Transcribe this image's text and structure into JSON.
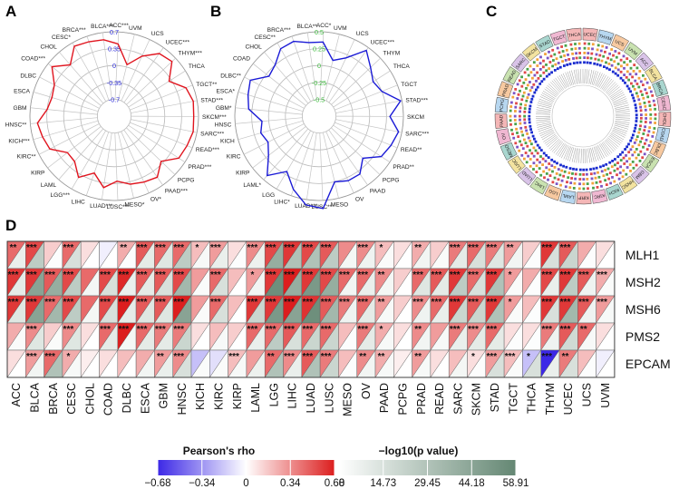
{
  "panels": {
    "a": "A",
    "b": "B",
    "c": "C",
    "d": "D"
  },
  "chart_data": [
    {
      "type": "radar",
      "panel": "A",
      "categories": [
        "ACC***",
        "UVM",
        "UCS",
        "UCEC***",
        "THYM***",
        "THCA",
        "TGCT**",
        "STAD***",
        "SKCM***",
        "SARC***",
        "READ***",
        "PRAD***",
        "PCPG",
        "PAAD***",
        "OV*",
        "MESO*",
        "LUSC***",
        "LUAD***",
        "LIHC",
        "LGG***",
        "LAML",
        "KIRP",
        "KIRC**",
        "KICH***",
        "HNSC**",
        "GBM",
        "ESCA",
        "DLBC",
        "COAD***",
        "CHOL",
        "CESC*",
        "BRCA***",
        "BLCA***"
      ],
      "values": [
        0.45,
        0.05,
        0.32,
        0.55,
        0.6,
        0.3,
        0.55,
        0.62,
        0.6,
        0.62,
        0.58,
        0.55,
        0.3,
        0.5,
        0.45,
        0.4,
        0.3,
        0.45,
        0.2,
        0.42,
        0.2,
        0.18,
        0.45,
        0.5,
        0.55,
        0.35,
        0.3,
        0.35,
        0.6,
        0.35,
        0.62,
        0.58,
        0.55
      ],
      "tick_labels": [
        "0.7",
        "0.35",
        "0",
        "-0.35",
        "-0.7"
      ],
      "ticks": [
        0.7,
        0.35,
        0,
        -0.35,
        -0.7
      ],
      "rlim": [
        -0.7,
        0.7
      ],
      "color": "#e0141e"
    },
    {
      "type": "radar",
      "panel": "B",
      "categories": [
        "ACC*",
        "UVM",
        "UCS",
        "UCEC***",
        "THYM",
        "THCA",
        "TGCT",
        "STAD***",
        "SKCM",
        "SARC***",
        "READ**",
        "PRAD**",
        "PCPG",
        "PAAD",
        "OV",
        "MESO",
        "LUSC***",
        "LUAD***",
        "LIHC*",
        "LGG",
        "LAML*",
        "KIRP",
        "KIRC",
        "KICH",
        "HNSC",
        "GBM*",
        "ESCA*",
        "DLBC**",
        "COAD",
        "CHOL",
        "CESC**",
        "BRCA***",
        "BLCA**"
      ],
      "values": [
        0.35,
        0.1,
        0.2,
        0.45,
        0.3,
        0.2,
        0.25,
        0.48,
        0.3,
        0.45,
        0.4,
        0.35,
        0.15,
        0.3,
        0.3,
        0.25,
        0.62,
        0.58,
        0.4,
        0.2,
        0.42,
        0.2,
        0.1,
        0.15,
        0.1,
        0.3,
        0.35,
        0.4,
        0.2,
        0.25,
        0.4,
        0.42,
        0.35
      ],
      "tick_labels": [
        "0.5",
        "0.25",
        "0",
        "-0.25",
        "-0.5"
      ],
      "ticks": [
        0.5,
        0.25,
        0,
        -0.25,
        -0.5
      ],
      "rlim": [
        -0.5,
        0.5
      ],
      "color": "#1a1ad6"
    },
    {
      "type": "circos",
      "panel": "C",
      "sectors": [
        "UCEC",
        "THYM",
        "UCS",
        "UVM",
        "ACC",
        "BLCA",
        "BRCA",
        "CESC",
        "CHOL",
        "COAD",
        "DLBC",
        "ESCA",
        "GBM",
        "HNSC",
        "KICH",
        "KIRC",
        "KIRP",
        "LAML",
        "LGG",
        "LIHC",
        "LUAD",
        "LUSC",
        "MESO",
        "OV",
        "PAAD",
        "PCPG",
        "PRAD",
        "READ",
        "SARC",
        "SKCM",
        "STAD",
        "TGCT",
        "THCA"
      ]
    },
    {
      "type": "heatmap",
      "panel": "D",
      "categories": [
        "ACC",
        "BLCA",
        "BRCA",
        "CESC",
        "CHOL",
        "COAD",
        "DLBC",
        "ESCA",
        "GBM",
        "HNSC",
        "KICH",
        "KIRC",
        "KIRP",
        "LAML",
        "LGG",
        "LIHC",
        "LUAD",
        "LUSC",
        "MESO",
        "OV",
        "PAAD",
        "PCPG",
        "PRAD",
        "READ",
        "SARC",
        "SKCM",
        "STAD",
        "TGCT",
        "THCA",
        "THYM",
        "UCEC",
        "UCS",
        "UVM"
      ],
      "genes": [
        "MLH1",
        "MSH2",
        "MSH6",
        "PMS2",
        "EPCAM"
      ],
      "rho": [
        [
          0.45,
          0.55,
          0.15,
          0.45,
          0.1,
          -0.05,
          0.25,
          0.5,
          0.45,
          0.45,
          0.2,
          0.3,
          0.1,
          0.35,
          0.55,
          0.6,
          0.55,
          0.5,
          0.35,
          0.35,
          0.2,
          0.1,
          0.25,
          0.15,
          0.4,
          0.45,
          0.4,
          0.3,
          0.15,
          0.6,
          0.5,
          0.25,
          0.1
        ],
        [
          0.6,
          0.6,
          0.5,
          0.55,
          0.45,
          0.55,
          0.65,
          0.5,
          0.5,
          0.55,
          0.3,
          0.45,
          0.2,
          0.3,
          0.6,
          0.68,
          0.6,
          0.55,
          0.45,
          0.45,
          0.35,
          0.15,
          0.45,
          0.5,
          0.6,
          0.45,
          0.6,
          0.3,
          0.25,
          0.55,
          0.6,
          0.5,
          0.25
        ],
        [
          0.6,
          0.6,
          0.45,
          0.55,
          0.45,
          0.55,
          0.68,
          0.5,
          0.5,
          0.68,
          0.3,
          0.45,
          0.2,
          0.6,
          0.6,
          0.68,
          0.62,
          0.5,
          0.4,
          0.45,
          0.3,
          0.15,
          0.35,
          0.45,
          0.6,
          0.5,
          0.6,
          0.3,
          0.2,
          0.6,
          0.6,
          0.5,
          0.3
        ],
        [
          0.25,
          0.35,
          0.15,
          0.35,
          0.1,
          0.45,
          0.68,
          0.45,
          0.4,
          0.4,
          0.1,
          0.2,
          0.15,
          0.45,
          0.45,
          0.5,
          0.45,
          0.45,
          0.2,
          0.4,
          0.25,
          0.1,
          0.35,
          0.3,
          0.4,
          0.35,
          0.45,
          0.1,
          0.1,
          0.4,
          0.5,
          0.45,
          0.1
        ],
        [
          0.1,
          0.3,
          0.45,
          0.25,
          0.05,
          0.1,
          0.2,
          0.25,
          0.3,
          0.35,
          -0.2,
          -0.1,
          0.2,
          0.3,
          0.45,
          0.35,
          0.5,
          0.4,
          0.2,
          0.35,
          0.25,
          0.05,
          0.3,
          0.1,
          0.2,
          0.1,
          0.3,
          0.2,
          -0.2,
          -0.68,
          0.4,
          0.2,
          -0.05
        ]
      ],
      "neglog10p": [
        [
          8,
          25,
          1,
          15,
          0,
          0,
          1,
          10,
          12,
          25,
          3,
          8,
          1,
          7,
          40,
          30,
          30,
          25,
          4,
          6,
          2,
          0,
          5,
          2,
          10,
          15,
          12,
          5,
          1,
          15,
          20,
          1,
          0
        ],
        [
          10,
          45,
          40,
          25,
          4,
          15,
          8,
          10,
          15,
          35,
          2,
          15,
          0,
          5,
          55,
          40,
          50,
          40,
          5,
          8,
          4,
          0,
          12,
          10,
          25,
          15,
          30,
          2,
          1,
          8,
          25,
          6,
          2
        ],
        [
          12,
          45,
          35,
          25,
          4,
          15,
          10,
          12,
          12,
          45,
          2,
          15,
          0,
          20,
          50,
          45,
          55,
          35,
          6,
          10,
          3,
          0,
          6,
          8,
          20,
          20,
          30,
          2,
          1,
          15,
          35,
          6,
          3
        ],
        [
          2,
          12,
          2,
          12,
          0,
          10,
          4,
          10,
          10,
          20,
          0,
          3,
          0,
          8,
          25,
          15,
          20,
          20,
          1,
          10,
          3,
          0,
          5,
          3,
          8,
          10,
          10,
          1,
          1,
          6,
          18,
          3,
          0
        ],
        [
          0,
          5,
          30,
          3,
          0,
          0,
          0,
          5,
          8,
          15,
          2,
          2,
          3,
          7,
          30,
          8,
          30,
          20,
          1,
          5,
          3,
          0,
          3,
          0,
          4,
          1,
          15,
          2,
          15,
          8,
          15,
          1,
          0
        ]
      ],
      "stars": [
        [
          "**",
          "***",
          "",
          "***",
          "",
          "",
          "**",
          "***",
          "***",
          "***",
          "*",
          "***",
          "",
          "***",
          "***",
          "***",
          "***",
          "***",
          "",
          "***",
          "*",
          "",
          "**",
          "",
          "***",
          "***",
          "***",
          "**",
          "",
          "***",
          "***",
          "",
          ""
        ],
        [
          "***",
          "***",
          "***",
          "***",
          "",
          "***",
          "***",
          "***",
          "***",
          "***",
          "",
          "***",
          "",
          "*",
          "***",
          "***",
          "***",
          "***",
          "***",
          "***",
          "**",
          "",
          "***",
          "***",
          "***",
          "***",
          "***",
          "*",
          "",
          "***",
          "***",
          "***",
          "***"
        ],
        [
          "***",
          "***",
          "***",
          "***",
          "",
          "***",
          "***",
          "***",
          "***",
          "***",
          "",
          "***",
          "",
          "***",
          "***",
          "***",
          "***",
          "***",
          "***",
          "***",
          "**",
          "",
          "***",
          "***",
          "***",
          "***",
          "***",
          "*",
          "",
          "***",
          "***",
          "***",
          "***"
        ],
        [
          "",
          "***",
          "",
          "***",
          "",
          "***",
          "***",
          "***",
          "***",
          "***",
          "",
          "",
          "",
          "***",
          "***",
          "***",
          "***",
          "***",
          "",
          "***",
          "*",
          "",
          "**",
          "",
          "***",
          "***",
          "***",
          "",
          "",
          "***",
          "***",
          "**",
          ""
        ],
        [
          "",
          "***",
          "***",
          "*",
          "",
          "",
          "",
          "",
          "**",
          "***",
          "",
          "",
          "***",
          "",
          "**",
          "***",
          "***",
          "***",
          "",
          "**",
          "**",
          "",
          "**",
          "",
          "",
          "*",
          "***",
          "***",
          "*",
          "***",
          "**",
          "",
          ""
        ]
      ],
      "rho_legend_title": "Pearson's rho",
      "rho_ticks": [
        "−0.68",
        "−0.34",
        "0",
        "0.34",
        "0.68"
      ],
      "rho_range": [
        -0.68,
        0.68
      ],
      "p_legend_title": "−log10(p value)",
      "p_ticks": [
        "0",
        "14.73",
        "29.45",
        "44.18",
        "58.91"
      ],
      "p_range": [
        0,
        58.91
      ]
    }
  ]
}
